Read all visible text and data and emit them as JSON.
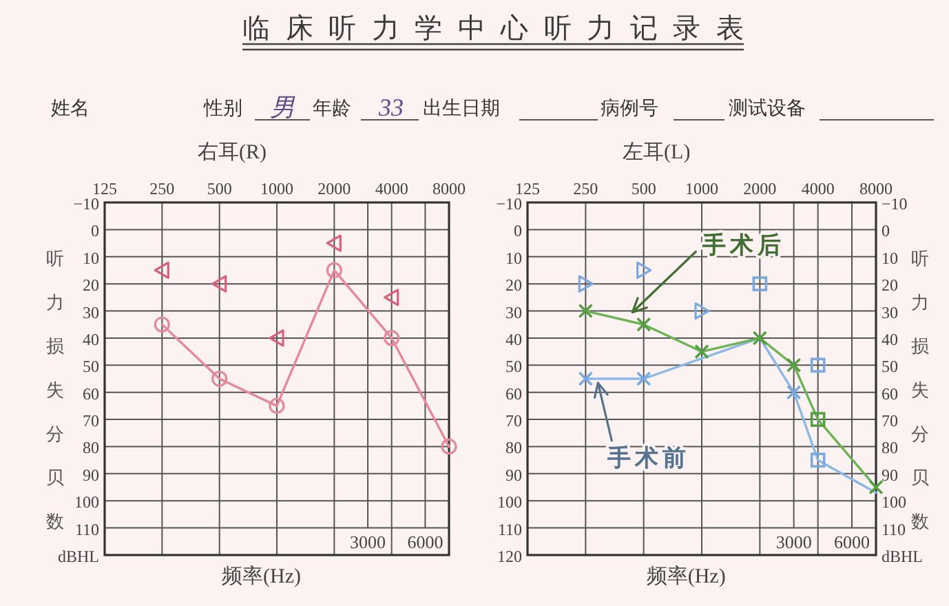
{
  "chart_data": [
    {
      "type": "other",
      "title": "临床听力学中心听力记录表",
      "annotations": [
        "姓名",
        "性别",
        "男",
        "年龄",
        "33",
        "出生日期",
        "病例号",
        "测试设备"
      ]
    },
    {
      "type": "line",
      "title": "右耳(R)",
      "xlabel": "频率(Hz)",
      "ylabel": "听力损失分贝数",
      "log": "x",
      "xlim": [
        125,
        8000
      ],
      "xticks": [
        125,
        250,
        500,
        1000,
        2000,
        4000,
        8000
      ],
      "ylim": [
        120,
        -10
      ],
      "yticks": [
        -10,
        0,
        10,
        20,
        30,
        40,
        50,
        60,
        70,
        80,
        90,
        100,
        110,
        {
          "value": 120,
          "label": "dBHL"
        }
      ],
      "grid": true,
      "ref_lines": [
        {
          "axis": "x",
          "value": 3000,
          "label": "3000",
          "color": "#555555"
        },
        {
          "axis": "x",
          "value": 6000,
          "label": "6000",
          "color": "#555555"
        }
      ],
      "series": [
        {
          "type": "line",
          "color": "#e5899a",
          "x": [
            250,
            500,
            1000,
            2000,
            4000,
            8000
          ],
          "values": [
            35,
            55,
            65,
            15,
            40,
            80
          ],
          "marker": "circle"
        },
        {
          "type": "scatter",
          "color": "#d9607a",
          "x": [
            250,
            500,
            1000,
            2000,
            4000
          ],
          "values": [
            15,
            20,
            40,
            5,
            25
          ],
          "marker": "triangle"
        }
      ]
    },
    {
      "type": "line",
      "title": "左耳(L)",
      "xlabel": "频率(Hz)",
      "y2label": "听力损失分贝数",
      "log": "x",
      "xlim": [
        125,
        8000
      ],
      "xticks": [
        125,
        250,
        500,
        1000,
        2000,
        4000,
        8000
      ],
      "ylim": [
        120,
        -10
      ],
      "yticks": [
        -10,
        0,
        10,
        20,
        30,
        40,
        50,
        60,
        70,
        80,
        90,
        100,
        110,
        120
      ],
      "y2lim": [
        120,
        -10
      ],
      "y2ticks": [
        -10,
        0,
        10,
        20,
        30,
        40,
        50,
        60,
        70,
        80,
        90,
        100,
        110,
        {
          "value": 120,
          "label": "dBHL"
        }
      ],
      "grid": true,
      "ref_lines": [
        {
          "axis": "x",
          "value": 3000,
          "label": "3000",
          "color": "#555555"
        },
        {
          "axis": "x",
          "value": 6000,
          "label": "6000",
          "color": "#555555"
        }
      ],
      "series": [
        {
          "type": "line",
          "color": "#8ab8e4",
          "x": [
            250,
            500,
            2000,
            3000,
            4000,
            8000
          ],
          "values": [
            55,
            55,
            40,
            60,
            85,
            97
          ]
        },
        {
          "type": "scatter",
          "color": "#79a9dd",
          "x": [
            250,
            500,
            3000
          ],
          "values": [
            55,
            55,
            60
          ],
          "marker": "cross"
        },
        {
          "type": "scatter",
          "color": "#79a9dd",
          "x": [
            4000
          ],
          "values": [
            85
          ],
          "marker": "square"
        },
        {
          "type": "scatter",
          "color": "#79a9dd",
          "x": [
            250,
            500,
            1000
          ],
          "values": [
            20,
            15,
            30
          ],
          "marker": "triangle"
        },
        {
          "type": "scatter",
          "color": "#79a9dd",
          "x": [
            2000,
            4000
          ],
          "values": [
            20,
            50
          ],
          "marker": "square"
        },
        {
          "type": "line",
          "color": "#6cb356",
          "x": [
            250,
            500,
            1000,
            2000,
            3000,
            4000,
            8000
          ],
          "values": [
            30,
            35,
            45,
            40,
            50,
            70,
            95
          ]
        },
        {
          "type": "scatter",
          "color": "#55a040",
          "x": [
            250,
            500,
            1000,
            2000,
            3000,
            8000
          ],
          "values": [
            30,
            35,
            45,
            40,
            50,
            95
          ],
          "marker": "cross"
        },
        {
          "type": "scatter",
          "color": "#55a040",
          "x": [
            4000
          ],
          "values": [
            70
          ],
          "marker": "square"
        }
      ],
      "annotations": [
        {
          "text": "手术后",
          "x": 430,
          "y": 31
        },
        {
          "text": "手术前",
          "x": 285,
          "y": 56
        }
      ]
    }
  ]
}
